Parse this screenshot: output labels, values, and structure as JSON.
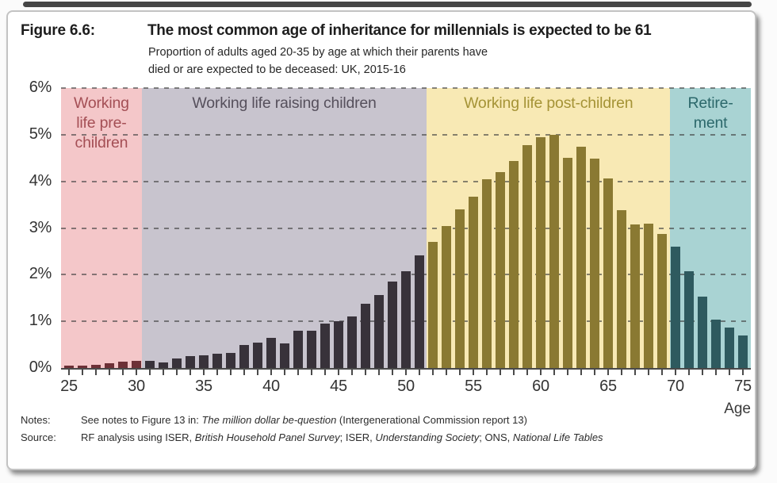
{
  "header": {
    "figure_label": "Figure 6.6:",
    "title": "The most common age of inheritance for millennials is expected to be 61",
    "subtitle": "Proportion of adults aged 20-35 by age at which their parents have\ndied or are expected to be deceased: UK, 2015-16"
  },
  "chart_data": {
    "type": "bar",
    "title": "The most common age of inheritance for millennials is expected to be 61",
    "subtitle": "Proportion of adults aged 20-35 by age at which their parents have died or are expected to be deceased: UK, 2015-16",
    "xlabel": "Age",
    "ylabel": "",
    "ylim": [
      0,
      6
    ],
    "y_tick_labels": [
      "6%",
      "5%",
      "4%",
      "3%",
      "2%",
      "1%",
      "0%"
    ],
    "x_tick_labels": [
      "25",
      "30",
      "35",
      "40",
      "45",
      "50",
      "55",
      "60",
      "65",
      "70",
      "75"
    ],
    "x_axis_range_displayed": [
      24.4,
      75.6
    ],
    "grid": "dashed horizontal gridlines at each 1%",
    "x": [
      25,
      26,
      27,
      28,
      29,
      30,
      31,
      32,
      33,
      34,
      35,
      36,
      37,
      38,
      39,
      40,
      41,
      42,
      43,
      44,
      45,
      46,
      47,
      48,
      49,
      50,
      51,
      52,
      53,
      54,
      55,
      56,
      57,
      58,
      59,
      60,
      61,
      62,
      63,
      64,
      65,
      66,
      67,
      68,
      69,
      70,
      71,
      72,
      73,
      74,
      75
    ],
    "values": [
      0.05,
      0.05,
      0.06,
      0.1,
      0.13,
      0.15,
      0.15,
      0.12,
      0.2,
      0.25,
      0.28,
      0.3,
      0.33,
      0.5,
      0.55,
      0.65,
      0.52,
      0.8,
      0.8,
      0.95,
      1.0,
      1.1,
      1.38,
      1.56,
      1.85,
      2.08,
      2.42,
      2.7,
      3.05,
      3.4,
      3.67,
      4.05,
      4.2,
      4.43,
      4.78,
      4.95,
      5.0,
      4.5,
      4.75,
      4.48,
      4.07,
      3.38,
      3.07,
      3.1,
      2.87,
      2.6,
      2.08,
      1.53,
      1.03,
      0.87,
      0.7
    ],
    "regions": [
      {
        "label": "Working life pre-children",
        "label_lines": [
          "Working",
          "life pre-",
          "children"
        ],
        "start_age": 24.4,
        "end_age": 30.4,
        "bg_color": "#f4c7c9",
        "label_color": "#a44f55",
        "bar_color": "#6d3036"
      },
      {
        "label": "Working life raising children",
        "label_lines": [
          "Working life raising children"
        ],
        "start_age": 30.4,
        "end_age": 51.55,
        "bg_color": "#c8c4ce",
        "label_color": "#56505c",
        "bar_color": "#38323a"
      },
      {
        "label": "Working life post-children",
        "label_lines": [
          "Working life post-children"
        ],
        "start_age": 51.55,
        "end_age": 69.6,
        "bg_color": "#f8e9b4",
        "label_color": "#a59336",
        "bar_color": "#8a7932"
      },
      {
        "label": "Retirement",
        "label_lines": [
          "Retire-",
          "ment"
        ],
        "start_age": 69.6,
        "end_age": 75.6,
        "bg_color": "#a9d3d3",
        "label_color": "#2c686b",
        "bar_color": "#2e5a5f"
      }
    ]
  },
  "footer": {
    "notes_label": "Notes:",
    "notes_parts": [
      {
        "text": "See notes to Figure 13 in: ",
        "italic": false
      },
      {
        "text": "The million dollar be-question",
        "italic": true
      },
      {
        "text": " (Intergenerational Commission report 13)",
        "italic": false
      }
    ],
    "source_label": "Source:",
    "source_parts": [
      {
        "text": "RF analysis using ISER, ",
        "italic": false
      },
      {
        "text": "British Household Panel Survey",
        "italic": true
      },
      {
        "text": "; ISER, ",
        "italic": false
      },
      {
        "text": "Understanding Society",
        "italic": true
      },
      {
        "text": "; ONS, ",
        "italic": false
      },
      {
        "text": "National Life Tables",
        "italic": true
      }
    ]
  }
}
